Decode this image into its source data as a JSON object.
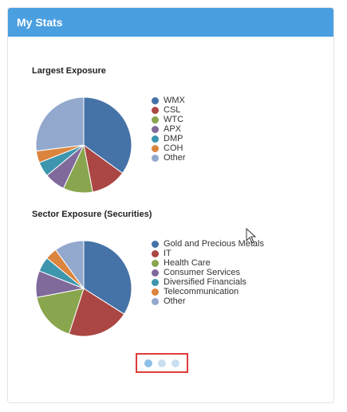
{
  "header": {
    "title": "My Stats"
  },
  "colors": {
    "header_bg": "#4a9fe0",
    "pager_highlight": "#e03a3a"
  },
  "chart_data": [
    {
      "type": "pie",
      "title": "Largest Exposure",
      "legend_placement": "right",
      "labels": [
        "WMX",
        "CSL",
        "WTC",
        "APX",
        "DMP",
        "COH",
        "Other"
      ],
      "values": [
        35,
        12,
        10,
        7,
        5,
        4,
        27
      ],
      "colors": [
        "#4572a7",
        "#aa4643",
        "#89a54e",
        "#80699b",
        "#3d96ae",
        "#db843d",
        "#92a8cd"
      ]
    },
    {
      "type": "pie",
      "title": "Sector Exposure (Securities)",
      "legend_placement": "right",
      "labels": [
        "Gold and Precious Metals",
        "IT",
        "Health Care",
        "Consumer Services",
        "Diversified Financials",
        "Telecommunication",
        "Other"
      ],
      "values": [
        34,
        21,
        17,
        9,
        5,
        4,
        10
      ],
      "colors": [
        "#4572a7",
        "#aa4643",
        "#89a54e",
        "#80699b",
        "#3d96ae",
        "#db843d",
        "#92a8cd"
      ]
    }
  ],
  "pager": {
    "pages": 3,
    "current": 1
  }
}
